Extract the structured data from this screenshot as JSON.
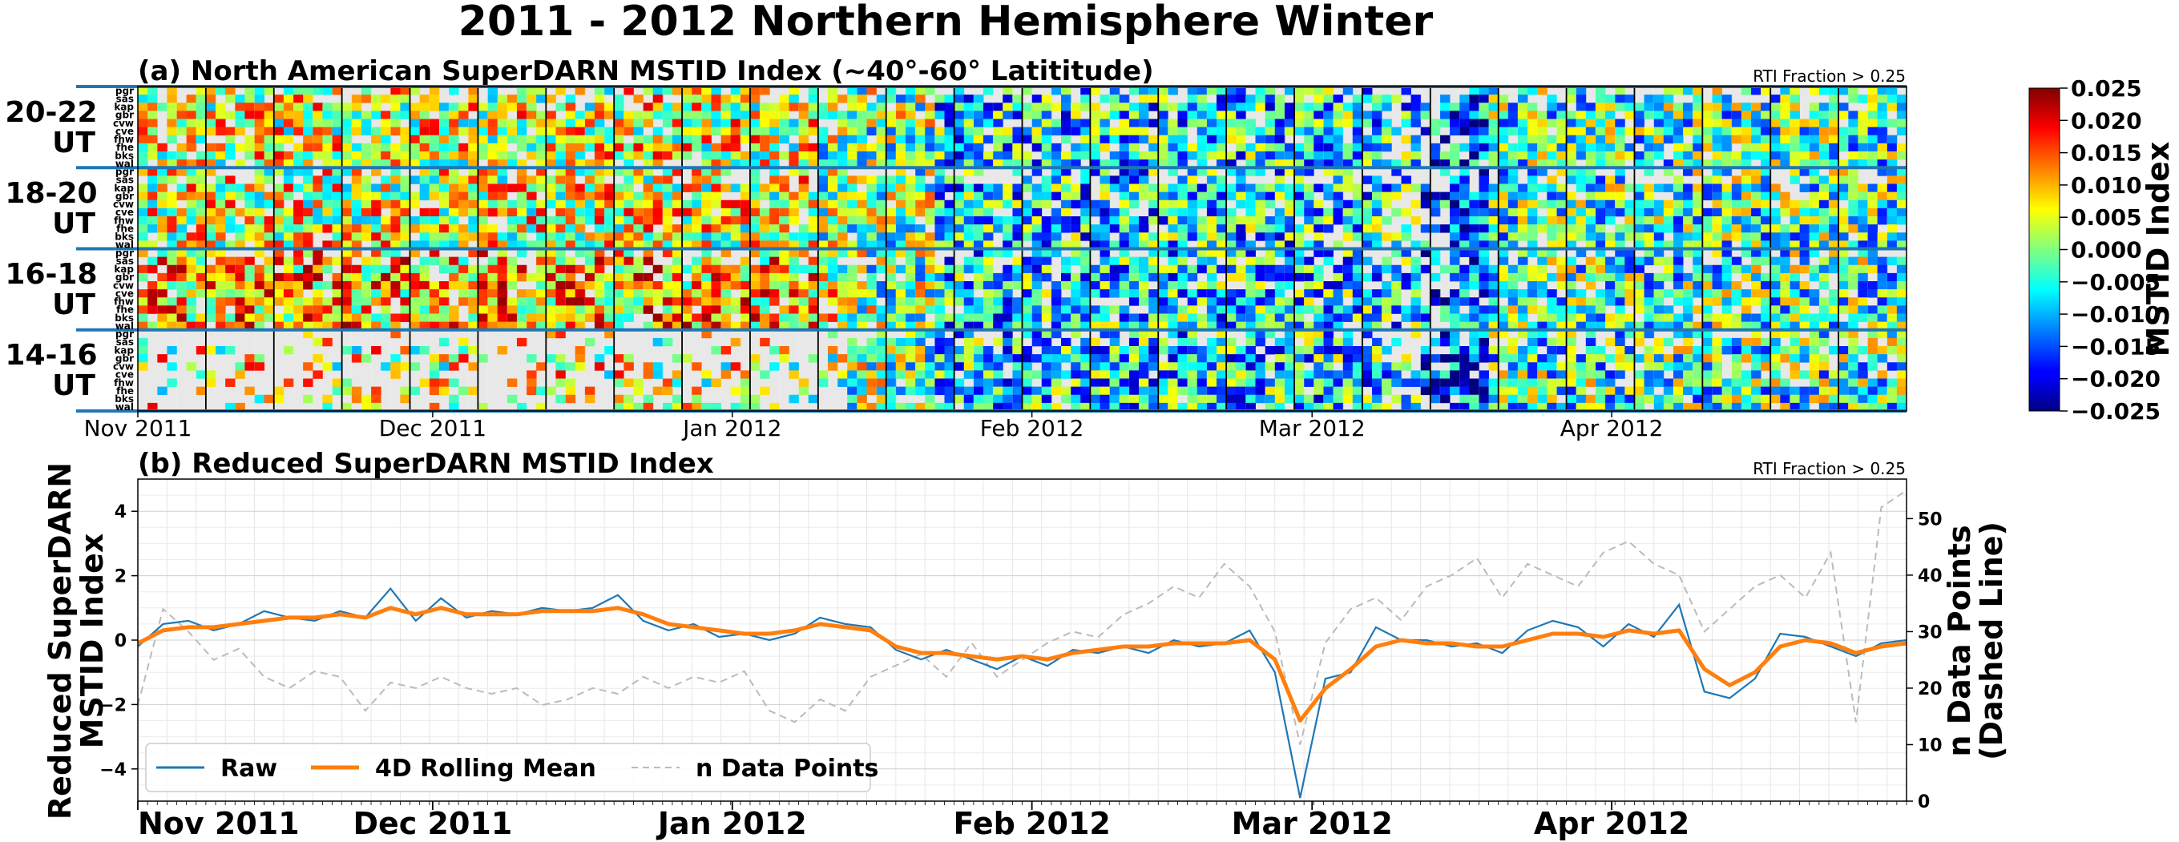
{
  "title": "2011 - 2012 Northern Hemisphere Winter",
  "panel_a": {
    "title": "(a) North American SuperDARN MSTID Index (~40°-60° Latititude)",
    "annotation": "RTI Fraction > 0.25",
    "ut_blocks": [
      {
        "line1": "20-22",
        "line2": "UT"
      },
      {
        "line1": "18-20",
        "line2": "UT"
      },
      {
        "line1": "16-18",
        "line2": "UT"
      },
      {
        "line1": "14-16",
        "line2": "UT"
      }
    ],
    "radars": [
      "pgr",
      "sas",
      "kap",
      "gbr",
      "cvw",
      "cve",
      "fhw",
      "fhe",
      "bks",
      "wal"
    ],
    "month_labels": [
      "Nov 2011",
      "Dec 2011",
      "Jan 2012",
      "Feb 2012",
      "Mar 2012",
      "Apr 2012"
    ]
  },
  "colorbar": {
    "label": "MSTID Index",
    "ticks": [
      "0.025",
      "0.020",
      "0.015",
      "0.010",
      "0.005",
      "0.000",
      "−0.005",
      "−0.010",
      "−0.015",
      "−0.020",
      "−0.025"
    ],
    "vmin": -0.025,
    "vmax": 0.025,
    "colormap": "jet"
  },
  "panel_b": {
    "title": "(b) Reduced SuperDARN MSTID Index",
    "annotation": "RTI Fraction > 0.25",
    "ylabel_left_line1": "Reduced SuperDARN",
    "ylabel_left_line2": "MSTID Index",
    "ylabel_right_line1": "n Data Points",
    "ylabel_right_line2": "(Dashed Line)",
    "yticks_left": [
      "4",
      "2",
      "0",
      "−2",
      "−4"
    ],
    "yticks_right": [
      "50",
      "40",
      "30",
      "20",
      "10",
      "0"
    ],
    "month_labels": [
      "Nov 2011",
      "Dec 2011",
      "Jan 2012",
      "Feb 2012",
      "Mar 2012",
      "Apr 2012"
    ],
    "legend": [
      "Raw",
      "4D Rolling Mean",
      "n Data Points"
    ]
  },
  "chart_data": [
    {
      "type": "heatmap",
      "title": "(a) North American SuperDARN MSTID Index (~40°-60° Latititude)",
      "x_range": [
        "2011-11-01",
        "2012-05-01"
      ],
      "rows": [
        "pgr",
        "sas",
        "kap",
        "gbr",
        "cvw",
        "cve",
        "fhw",
        "fhe",
        "bks",
        "wal"
      ],
      "blocks": [
        "20-22 UT",
        "18-20 UT",
        "16-18 UT",
        "14-16 UT"
      ],
      "color_range": [
        -0.025,
        0.025
      ],
      "colormap": "jet",
      "grid": true
    },
    {
      "type": "line",
      "title": "(b) Reduced SuperDARN MSTID Index",
      "x_range": [
        "2011-11-01",
        "2012-05-01"
      ],
      "ylim_left": [
        -5,
        5
      ],
      "ylim_right": [
        0,
        57
      ],
      "grid": true,
      "legend_position": "lower-left",
      "series_sample_step_days": 4,
      "series": [
        {
          "name": "Raw",
          "axis": "left",
          "color": "#1f77b4",
          "values": [
            -0.2,
            0.5,
            0.6,
            0.3,
            0.5,
            0.9,
            0.7,
            0.6,
            0.9,
            0.7,
            1.6,
            0.6,
            1.3,
            0.7,
            0.9,
            0.8,
            1.0,
            0.9,
            1.0,
            1.4,
            0.6,
            0.3,
            0.5,
            0.1,
            0.2,
            0.0,
            0.2,
            0.7,
            0.5,
            0.4,
            -0.3,
            -0.6,
            -0.3,
            -0.6,
            -0.9,
            -0.5,
            -0.8,
            -0.3,
            -0.4,
            -0.2,
            -0.4,
            0.0,
            -0.2,
            -0.1,
            0.3,
            -1.0,
            -4.9,
            -1.2,
            -1.0,
            0.4,
            0.0,
            0.0,
            -0.2,
            -0.1,
            -0.4,
            0.3,
            0.6,
            0.4,
            -0.2,
            0.5,
            0.1,
            1.1,
            -1.6,
            -1.8,
            -1.2,
            0.2,
            0.1,
            -0.2,
            -0.5,
            -0.1,
            0.0
          ]
        },
        {
          "name": "4D Rolling Mean",
          "axis": "left",
          "color": "#ff7f0e",
          "values": [
            -0.1,
            0.3,
            0.4,
            0.4,
            0.5,
            0.6,
            0.7,
            0.7,
            0.8,
            0.7,
            1.0,
            0.8,
            1.0,
            0.8,
            0.8,
            0.8,
            0.9,
            0.9,
            0.9,
            1.0,
            0.8,
            0.5,
            0.4,
            0.3,
            0.2,
            0.2,
            0.3,
            0.5,
            0.4,
            0.3,
            -0.2,
            -0.4,
            -0.4,
            -0.5,
            -0.6,
            -0.5,
            -0.6,
            -0.4,
            -0.3,
            -0.2,
            -0.2,
            -0.1,
            -0.1,
            -0.1,
            0.0,
            -0.6,
            -2.5,
            -1.5,
            -0.9,
            -0.2,
            0.0,
            -0.1,
            -0.1,
            -0.2,
            -0.2,
            0.0,
            0.2,
            0.2,
            0.1,
            0.3,
            0.2,
            0.3,
            -0.9,
            -1.4,
            -1.0,
            -0.2,
            0.0,
            -0.1,
            -0.4,
            -0.2,
            -0.1
          ]
        },
        {
          "name": "n Data Points",
          "axis": "right",
          "color": "#bbbbbb",
          "values": [
            17,
            34,
            30,
            25,
            27,
            22,
            20,
            23,
            22,
            16,
            21,
            20,
            22,
            20,
            19,
            20,
            17,
            18,
            20,
            19,
            22,
            20,
            22,
            21,
            23,
            16,
            14,
            18,
            16,
            22,
            24,
            26,
            22,
            28,
            22,
            25,
            28,
            30,
            29,
            33,
            35,
            38,
            36,
            42,
            38,
            30,
            10,
            28,
            34,
            36,
            32,
            38,
            40,
            43,
            36,
            42,
            40,
            38,
            44,
            46,
            42,
            40,
            30,
            34,
            38,
            40,
            36,
            44,
            14,
            52,
            55
          ]
        }
      ]
    }
  ]
}
